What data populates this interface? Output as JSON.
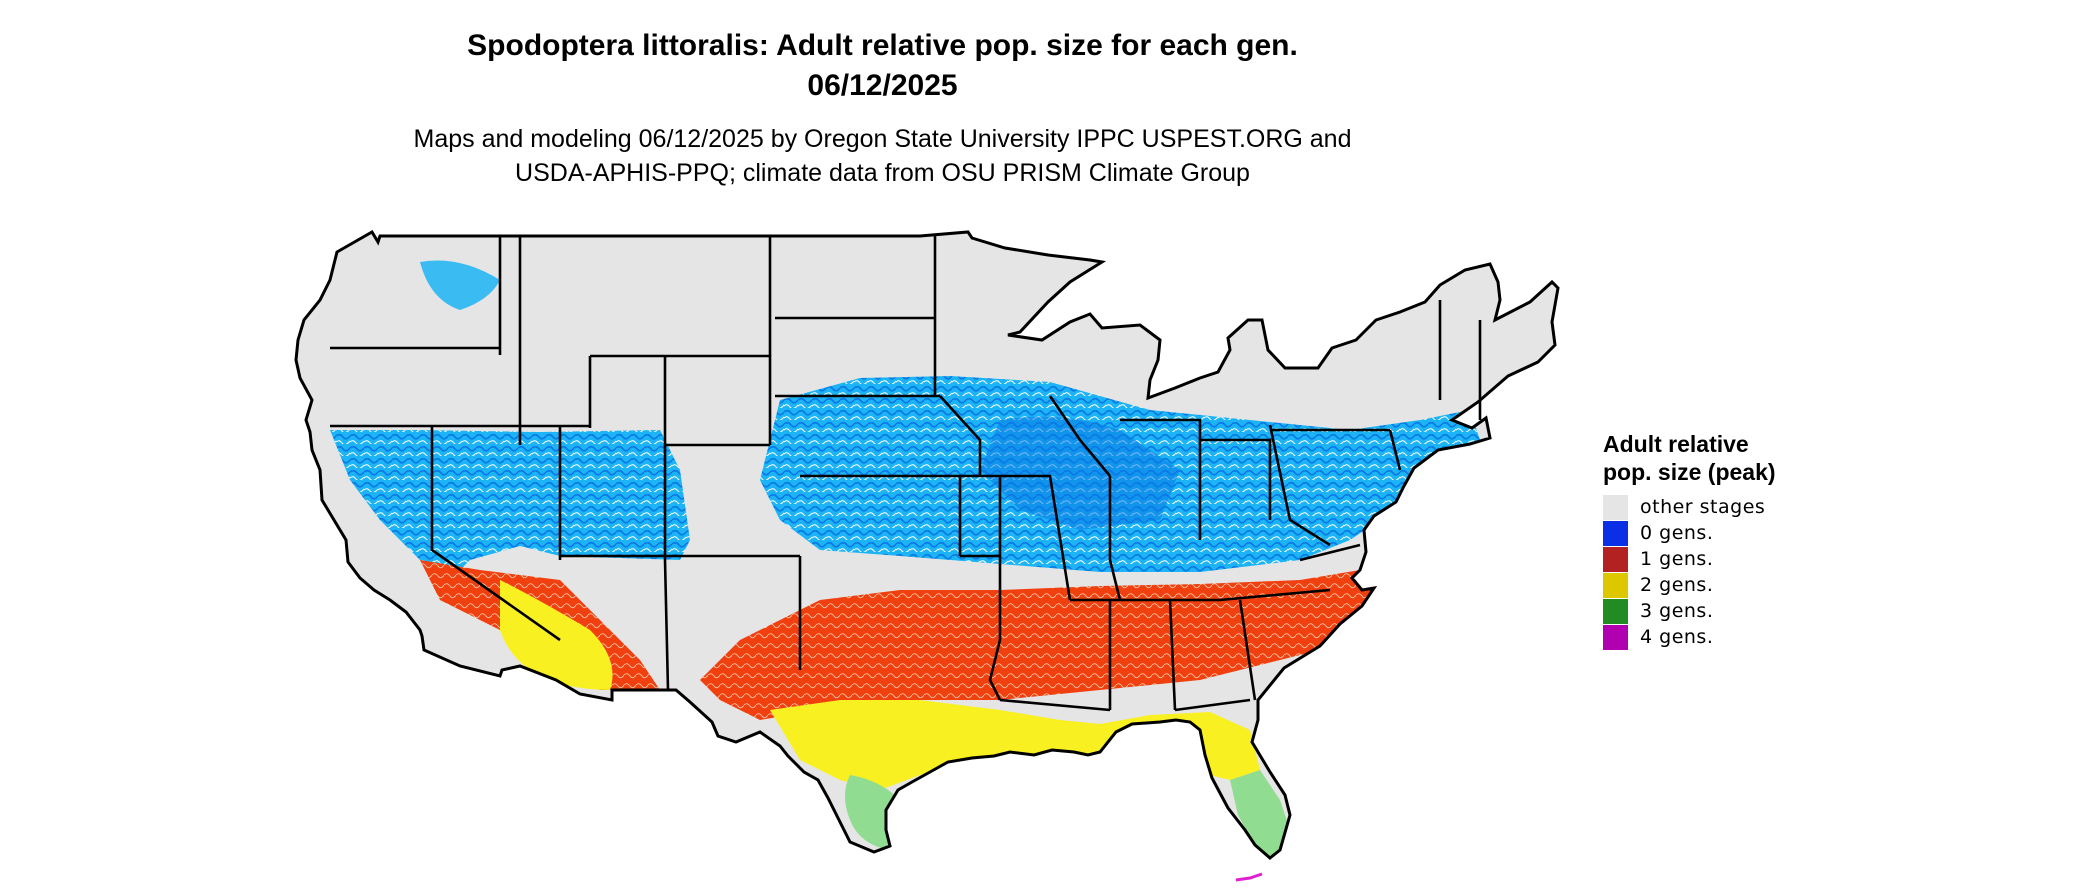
{
  "title": {
    "line1": "Spodoptera littoralis: Adult relative pop. size for each gen.",
    "line2": "06/12/2025"
  },
  "subtitle": {
    "line1": "Maps and modeling 06/12/2025 by Oregon State University IPPC USPEST.ORG and",
    "line2": "USDA-APHIS-PPQ; climate data from OSU PRISM Climate Group"
  },
  "legend": {
    "title": "Adult relative pop. size (peak)",
    "items": [
      {
        "label": "other stages",
        "color": "#e5e5e5"
      },
      {
        "label": "0 gens.",
        "color": "#0a2fe6"
      },
      {
        "label": "1 gens.",
        "color": "#b22222"
      },
      {
        "label": "2 gens.",
        "color": "#ddc800"
      },
      {
        "label": "3 gens.",
        "color": "#228b22"
      },
      {
        "label": "4 gens.",
        "color": "#b000b0"
      }
    ]
  },
  "map": {
    "region": "Contiguous United States",
    "background_color": "#e5e5e5",
    "border_color": "#000000",
    "zone_colors": {
      "light_blue": "#1cb4f4",
      "mid_blue": "#0a7ae6",
      "orange_red": "#f04010",
      "yellow": "#f8f020",
      "light_green": "#90dc90",
      "magenta": "#e020d0"
    }
  }
}
